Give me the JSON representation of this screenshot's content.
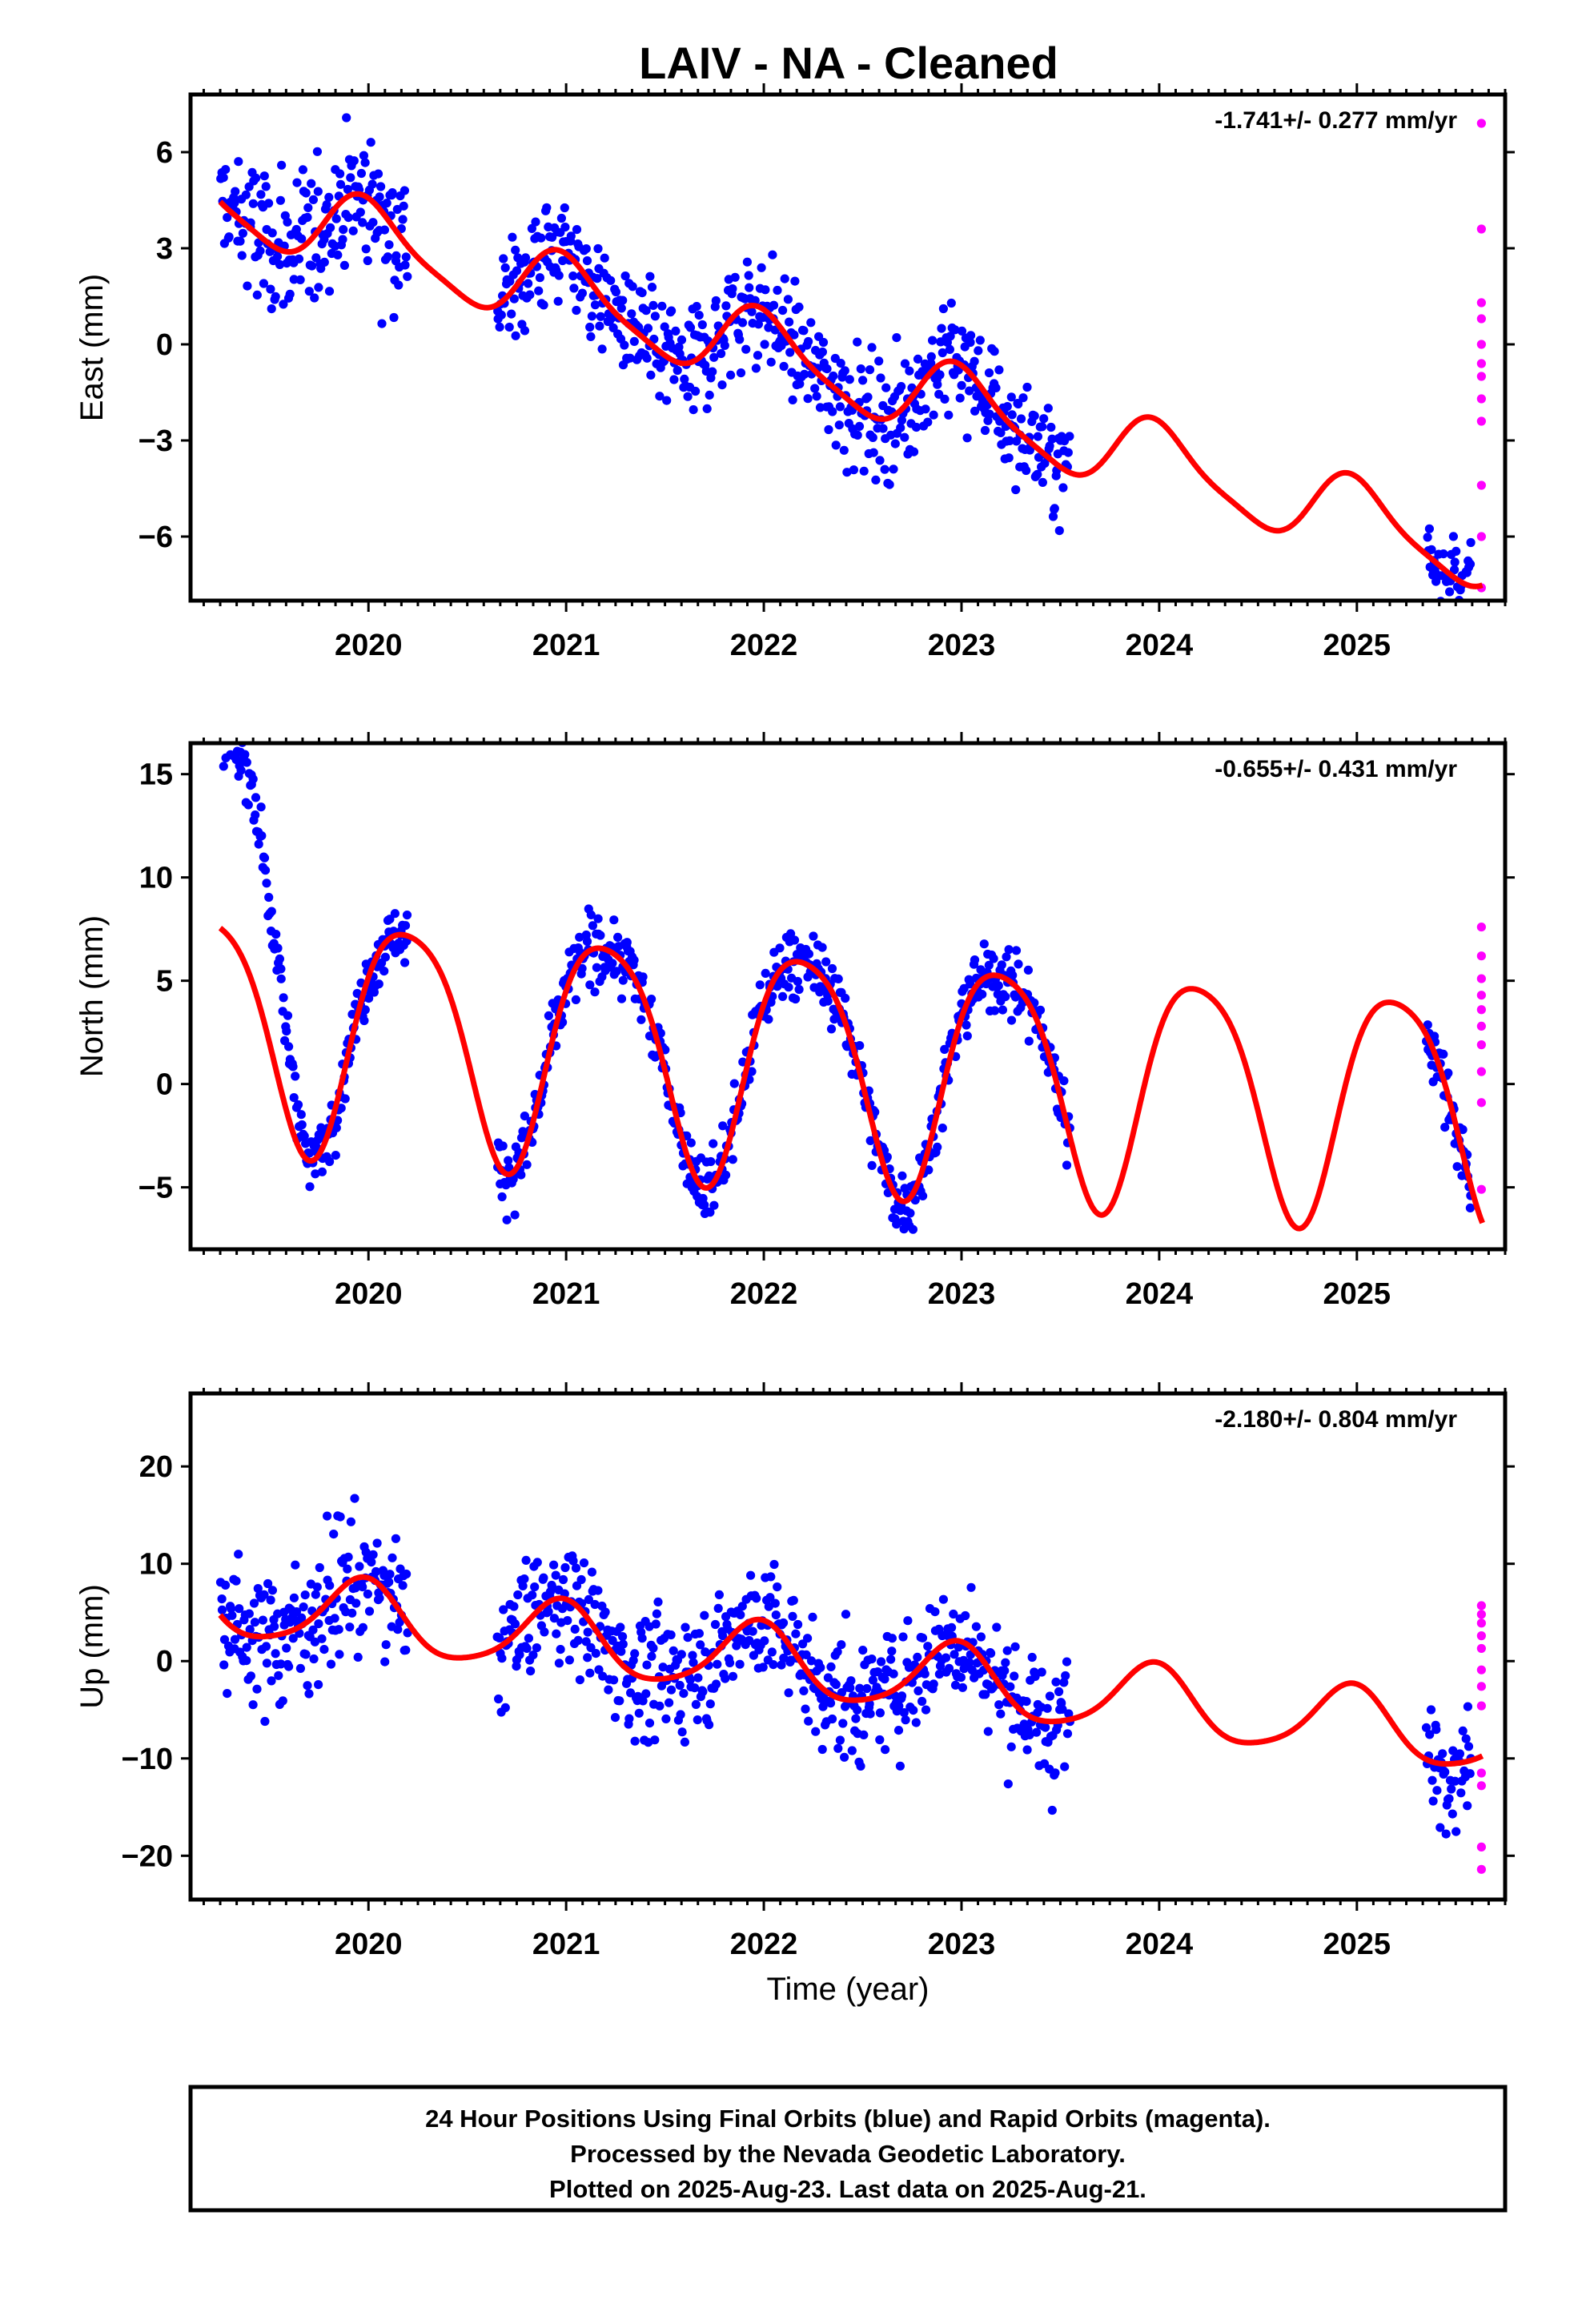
{
  "title": "LAIV  - NA - Cleaned",
  "x_axis": {
    "label": "Time (year)",
    "ticks": [
      2020,
      2021,
      2022,
      2023,
      2024,
      2025
    ],
    "range": [
      2019.1,
      2025.75
    ]
  },
  "colors": {
    "final": "#0000ff",
    "rapid": "#ff00ff",
    "model": "#ff0000",
    "frame": "#000000"
  },
  "footer": {
    "line1": "24 Hour Positions Using Final Orbits (blue) and Rapid Orbits (magenta).",
    "line2": "Processed by the Nevada Geodetic Laboratory.",
    "line3": "Plotted on 2025-Aug-23. Last data on 2025-Aug-21."
  },
  "chart_data": [
    {
      "type": "scatter",
      "id": "east",
      "ylabel": "East (mm)",
      "rate": "-1.741+/- 0.277 mm/yr",
      "ylim": [
        -8,
        7.8
      ],
      "yticks": [
        6,
        3,
        0,
        -3,
        -6
      ],
      "ytick_labels": [
        "6",
        "3",
        "0",
        "−3",
        "−6"
      ],
      "trend": {
        "slope": -1.741,
        "intercept": 4.15,
        "t0": 2019.5
      },
      "seasonal": {
        "a1": 1.15,
        "p1": 0.0,
        "a2": 0.25,
        "p2": 1.0
      },
      "segments": [
        {
          "start": 2019.25,
          "end": 2020.2,
          "scatter": 1.4
        },
        {
          "start": 2020.65,
          "end": 2023.55,
          "scatter": 1.1
        },
        {
          "start": 2025.35,
          "end": 2025.58,
          "scatter": 1.3
        }
      ],
      "rapid": {
        "x": 2025.63,
        "values": [
          6.9,
          3.6,
          1.3,
          0.8,
          0.0,
          -0.6,
          -1.0,
          -1.7,
          -2.4,
          -4.4,
          -6.0,
          -7.6
        ]
      }
    },
    {
      "type": "scatter",
      "id": "north",
      "ylabel": "North (mm)",
      "rate": "-0.655+/- 0.431 mm/yr",
      "ylim": [
        -8,
        16.5
      ],
      "yticks": [
        15,
        10,
        5,
        0,
        -5
      ],
      "ytick_labels": [
        "15",
        "10",
        "5",
        "0",
        "−5"
      ],
      "trend": {
        "slope": -0.655,
        "intercept": 2.9,
        "t0": 2019.5
      },
      "seasonal": {
        "a1": 5.6,
        "p1": -1.25,
        "a2": 0.9,
        "p2": 0.4
      },
      "segments": [
        {
          "start": 2019.25,
          "end": 2020.2,
          "scatter": 0.9,
          "offset_to": 2019.7,
          "offset": 9.5
        },
        {
          "start": 2020.65,
          "end": 2023.55,
          "scatter": 1.0
        },
        {
          "start": 2025.35,
          "end": 2025.58,
          "scatter": 1.0
        }
      ],
      "rapid": {
        "x": 2025.63,
        "values": [
          7.6,
          6.2,
          5.1,
          4.3,
          3.6,
          2.8,
          1.9,
          0.6,
          -0.9,
          -5.1
        ]
      }
    },
    {
      "type": "scatter",
      "id": "up",
      "ylabel": "Up (mm)",
      "rate": "-2.180+/- 0.804 mm/yr",
      "ylim": [
        -24.5,
        27.5
      ],
      "yticks": [
        20,
        10,
        0,
        -10,
        -20
      ],
      "ytick_labels": [
        "20",
        "10",
        "0",
        "−10",
        "−20"
      ],
      "trend": {
        "slope": -2.18,
        "intercept": 5.5,
        "t0": 2019.5
      },
      "seasonal": {
        "a1": 3.6,
        "p1": 0.2,
        "a2": 0.6,
        "p2": 0.0
      },
      "segments": [
        {
          "start": 2019.25,
          "end": 2020.2,
          "scatter": 4.2
        },
        {
          "start": 2020.65,
          "end": 2023.55,
          "scatter": 3.8
        },
        {
          "start": 2025.35,
          "end": 2025.58,
          "scatter": 3.6
        }
      ],
      "rapid": {
        "x": 2025.63,
        "values": [
          5.7,
          4.8,
          3.9,
          2.6,
          1.3,
          -0.9,
          -2.6,
          -4.6,
          -11.5,
          -12.8,
          -19.1,
          -21.4
        ]
      }
    }
  ]
}
